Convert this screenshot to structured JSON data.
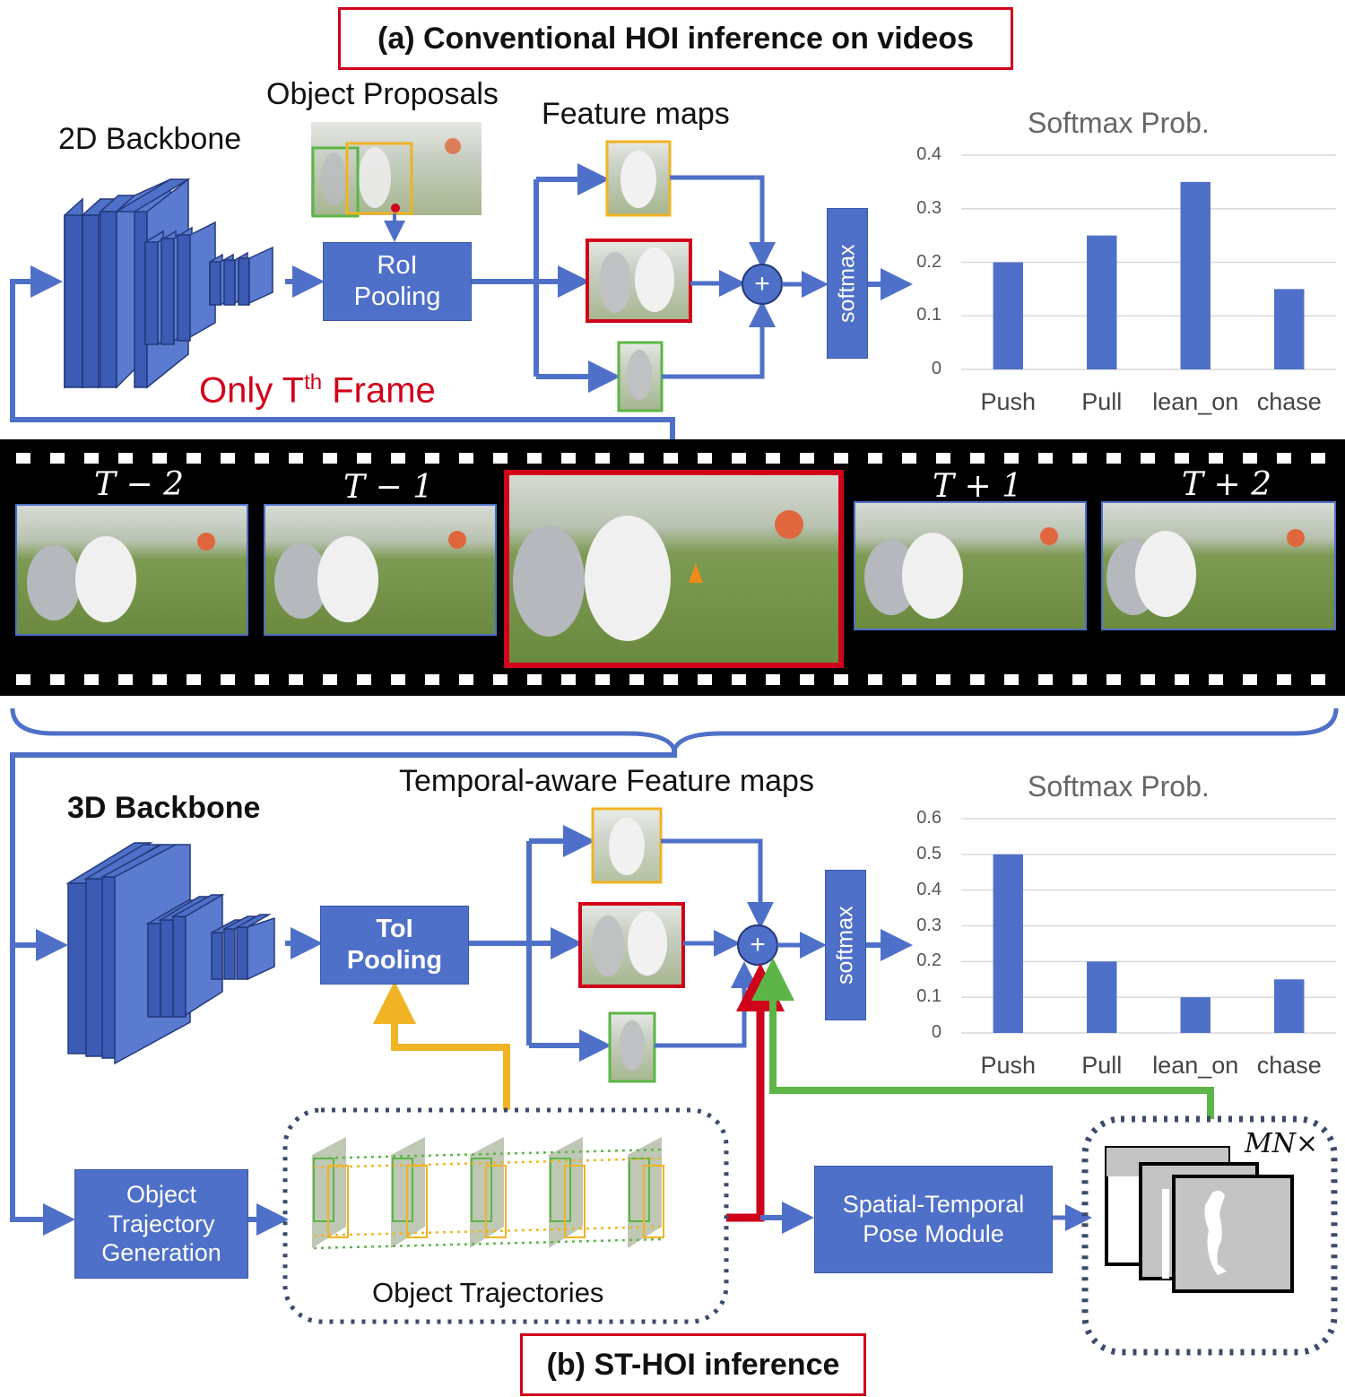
{
  "top": {
    "title": "(a) Conventional HOI inference on videos",
    "backbone_label": "2D Backbone",
    "proposals_label": "Object Proposals",
    "feature_maps_label": "Feature maps",
    "pooling": {
      "line1": "RoI",
      "line2": "Pooling"
    },
    "softmax_label": "softmax",
    "only_frame": {
      "prefix": "Only T",
      "sup": "th",
      "suffix": " Frame"
    },
    "plus_symbol": "+"
  },
  "filmstrip": {
    "frames": [
      "T − 2",
      "T − 1",
      "T + 1",
      "T + 2"
    ]
  },
  "bottom": {
    "title": "(b) ST-HOI inference",
    "backbone_label": "3D Backbone",
    "feature_maps_label": "Temporal-aware Feature maps",
    "pooling": {
      "line1": "ToI",
      "line2": "Pooling"
    },
    "softmax_label": "softmax",
    "trajectory_gen": {
      "line1": "Object",
      "line2": "Trajectory",
      "line3": "Generation"
    },
    "trajectories_label": "Object Trajectories",
    "pose_module": {
      "line1": "Spatial-Temporal",
      "line2": "Pose Module"
    },
    "mn_label": "MN×",
    "plus_symbol": "+"
  },
  "chart_data": [
    {
      "type": "bar",
      "title": "Softmax Prob.",
      "categories": [
        "Push",
        "Pull",
        "lean_on",
        "chase"
      ],
      "values": [
        0.2,
        0.25,
        0.35,
        0.15
      ],
      "ylim": [
        0,
        0.4
      ],
      "yticks": [
        "0",
        "0.1",
        "0.2",
        "0.3",
        "0.4"
      ],
      "grid": true,
      "color": "#4f70c8"
    },
    {
      "type": "bar",
      "title": "Softmax Prob.",
      "categories": [
        "Push",
        "Pull",
        "lean_on",
        "chase"
      ],
      "values": [
        0.5,
        0.2,
        0.1,
        0.15
      ],
      "ylim": [
        0,
        0.6
      ],
      "yticks": [
        "0",
        "0.1",
        "0.2",
        "0.3",
        "0.4",
        "0.5",
        "0.6"
      ],
      "grid": true,
      "color": "#4f70c8"
    }
  ],
  "colors": {
    "accent_blue": "#4f70c8",
    "highlight_red": "#d0021b",
    "box_yellow": "#f0b323",
    "box_green": "#5cb547",
    "dark_dotted": "#3c4a6b"
  }
}
